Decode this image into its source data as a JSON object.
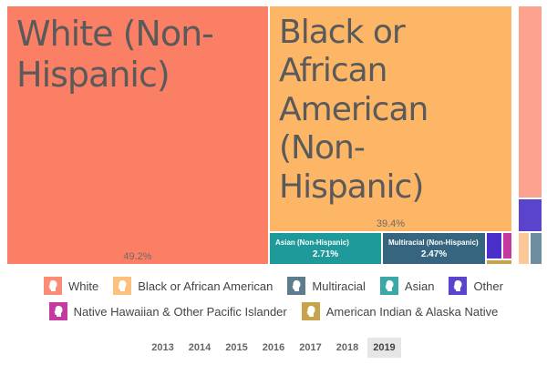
{
  "chart_data": {
    "type": "treemap",
    "tiles": [
      {
        "name": "White (Non-Hispanic)",
        "value_label": "49.2%",
        "value": 49.2,
        "color": "#fb7f65"
      },
      {
        "name": "Black or African American (Non-Hispanic)",
        "value_label": "39.4%",
        "value": 39.4,
        "color": "#fdb566"
      },
      {
        "name": "Asian (Non-Hispanic)",
        "value_label": "2.71%",
        "value": 2.71,
        "color": "#1e9a9a"
      },
      {
        "name": "Multiracial (Non-Hispanic)",
        "value_label": "2.47%",
        "value": 2.47,
        "color": "#35657f"
      }
    ],
    "legend": [
      {
        "label": "White",
        "color": "#fb8c76"
      },
      {
        "label": "Black or African American",
        "color": "#fdc17d"
      },
      {
        "label": "Multiracial",
        "color": "#5d7d8f"
      },
      {
        "label": "Asian",
        "color": "#3aa8a6"
      },
      {
        "label": "Other",
        "color": "#5a44cc"
      },
      {
        "label": "Native Hawaiian & Other Pacific Islander",
        "color": "#c43aa0"
      },
      {
        "label": "American Indian & Alaska Native",
        "color": "#c7a34c"
      }
    ],
    "years": [
      "2013",
      "2014",
      "2015",
      "2016",
      "2017",
      "2018",
      "2019"
    ],
    "selected_year": "2019"
  }
}
